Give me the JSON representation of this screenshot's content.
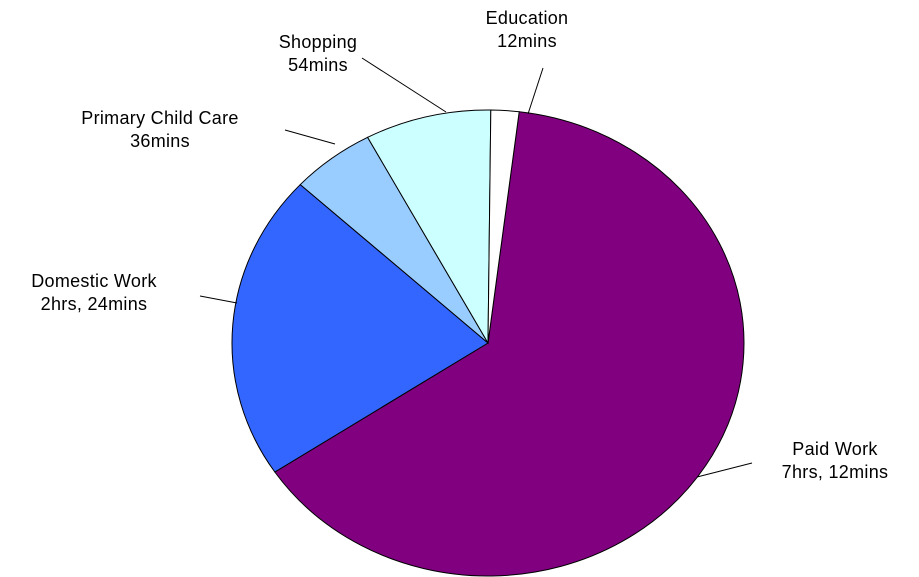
{
  "chart_data": {
    "type": "pie",
    "title": "",
    "slices": [
      {
        "name": "Paid Work",
        "display": "7hrs, 12mins",
        "minutes": 432,
        "color": "#800080"
      },
      {
        "name": "Domestic Work",
        "display": "2hrs, 24mins",
        "minutes": 144,
        "color": "#3366FF"
      },
      {
        "name": "Primary Child Care",
        "display": "36mins",
        "minutes": 36,
        "color": "#99CCFF"
      },
      {
        "name": "Shopping",
        "display": "54mins",
        "minutes": 54,
        "color": "#CCFFFF"
      },
      {
        "name": "Education",
        "display": "12mins",
        "minutes": 12,
        "color": "#FFFFFF"
      }
    ]
  }
}
